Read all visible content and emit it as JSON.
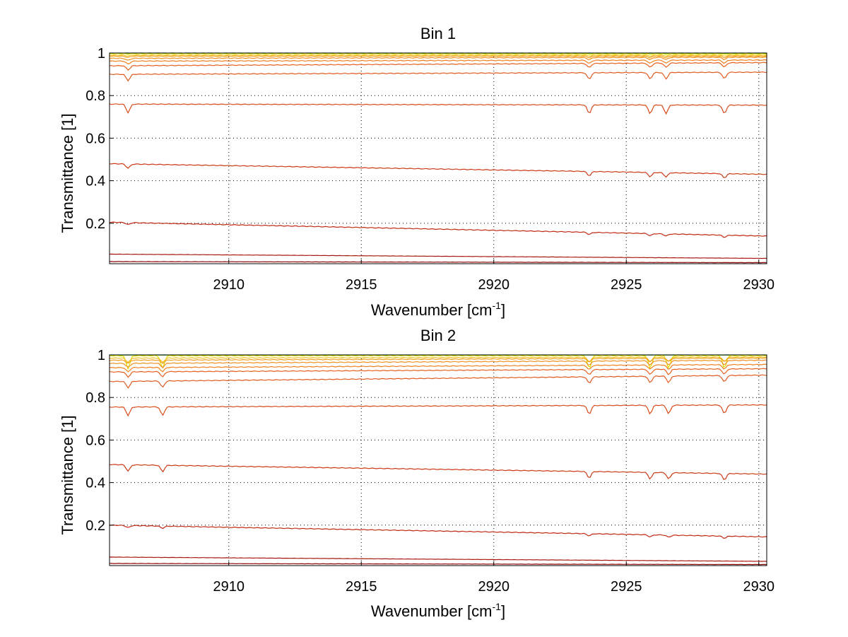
{
  "chart_data": [
    {
      "type": "line",
      "title": "Bin 1",
      "xlabel": "Wavenumber [cm",
      "xlabel_sup": "-1",
      "xlabel_close": "]",
      "ylabel": "Transmittance [1]",
      "xlim": [
        2905.5,
        2930.3
      ],
      "ylim": [
        0.01,
        1.0
      ],
      "xticks": [
        2910,
        2915,
        2920,
        2925,
        2930
      ],
      "yticks": [
        0.2,
        0.4,
        0.6,
        0.8,
        1
      ],
      "xtick_labels": [
        "2910",
        "2915",
        "2920",
        "2925",
        "2930"
      ],
      "ytick_labels": [
        "0.2",
        "0.4",
        "0.6",
        "0.8",
        "1"
      ],
      "grid": true,
      "dips": [
        2906.2,
        2923.6,
        2925.9,
        2926.5,
        2928.7
      ],
      "series": [
        {
          "color": "#00c8c8",
          "start": 1.0,
          "end": 1.0,
          "depth": 0.0
        },
        {
          "color": "#7fe040",
          "start": 0.999,
          "end": 0.999,
          "depth": 0.0
        },
        {
          "color": "#e0e000",
          "start": 0.997,
          "end": 0.996,
          "depth": 0.002
        },
        {
          "color": "#f0c020",
          "start": 0.99,
          "end": 0.99,
          "depth": 0.004
        },
        {
          "color": "#f0a020",
          "start": 0.985,
          "end": 0.985,
          "depth": 0.006
        },
        {
          "color": "#f09020",
          "start": 0.975,
          "end": 0.98,
          "depth": 0.01
        },
        {
          "color": "#f08020",
          "start": 0.962,
          "end": 0.967,
          "depth": 0.015
        },
        {
          "color": "#e86020",
          "start": 0.94,
          "end": 0.955,
          "depth": 0.02
        },
        {
          "color": "#e05a20",
          "start": 0.9,
          "end": 0.91,
          "depth": 0.03
        },
        {
          "color": "#d84a1a",
          "start": 0.76,
          "end": 0.755,
          "depth": 0.04
        },
        {
          "color": "#cc3a18",
          "start": 0.48,
          "end": 0.43,
          "depth": 0.02
        },
        {
          "color": "#c02a14",
          "start": 0.205,
          "end": 0.14,
          "depth": 0.01
        },
        {
          "color": "#a81810",
          "start": 0.055,
          "end": 0.035,
          "depth": 0.0
        },
        {
          "color": "#900808",
          "start": 0.02,
          "end": 0.015,
          "depth": 0.0
        }
      ]
    },
    {
      "type": "line",
      "title": "Bin 2",
      "xlabel": "Wavenumber [cm",
      "xlabel_sup": "-1",
      "xlabel_close": "]",
      "ylabel": "Transmittance [1]",
      "xlim": [
        2905.5,
        2930.3
      ],
      "ylim": [
        0.01,
        1.0
      ],
      "xticks": [
        2910,
        2915,
        2920,
        2925,
        2930
      ],
      "yticks": [
        0.2,
        0.4,
        0.6,
        0.8,
        1
      ],
      "xtick_labels": [
        "2910",
        "2915",
        "2920",
        "2925",
        "2930"
      ],
      "ytick_labels": [
        "0.2",
        "0.4",
        "0.6",
        "0.8",
        "1"
      ],
      "grid": true,
      "dips": [
        2906.2,
        2907.5,
        2923.6,
        2925.9,
        2926.6,
        2928.7
      ],
      "series": [
        {
          "color": "#00c8c8",
          "start": 1.0,
          "end": 1.0,
          "depth": 0.0
        },
        {
          "color": "#7fe040",
          "start": 0.999,
          "end": 0.999,
          "depth": 0.0
        },
        {
          "color": "#e0e000",
          "start": 0.996,
          "end": 0.997,
          "depth": 0.06
        },
        {
          "color": "#f0c020",
          "start": 0.985,
          "end": 0.99,
          "depth": 0.02
        },
        {
          "color": "#f0a020",
          "start": 0.975,
          "end": 0.985,
          "depth": 0.015
        },
        {
          "color": "#f09020",
          "start": 0.96,
          "end": 0.975,
          "depth": 0.02
        },
        {
          "color": "#f08020",
          "start": 0.94,
          "end": 0.955,
          "depth": 0.02
        },
        {
          "color": "#e86020",
          "start": 0.92,
          "end": 0.935,
          "depth": 0.025
        },
        {
          "color": "#e05a20",
          "start": 0.875,
          "end": 0.905,
          "depth": 0.03
        },
        {
          "color": "#d84a1a",
          "start": 0.755,
          "end": 0.765,
          "depth": 0.04
        },
        {
          "color": "#cc3a18",
          "start": 0.485,
          "end": 0.44,
          "depth": 0.03
        },
        {
          "color": "#c02a14",
          "start": 0.2,
          "end": 0.145,
          "depth": 0.01
        },
        {
          "color": "#a81810",
          "start": 0.05,
          "end": 0.03,
          "depth": 0.0
        },
        {
          "color": "#900808",
          "start": 0.02,
          "end": 0.015,
          "depth": 0.0
        }
      ]
    }
  ]
}
